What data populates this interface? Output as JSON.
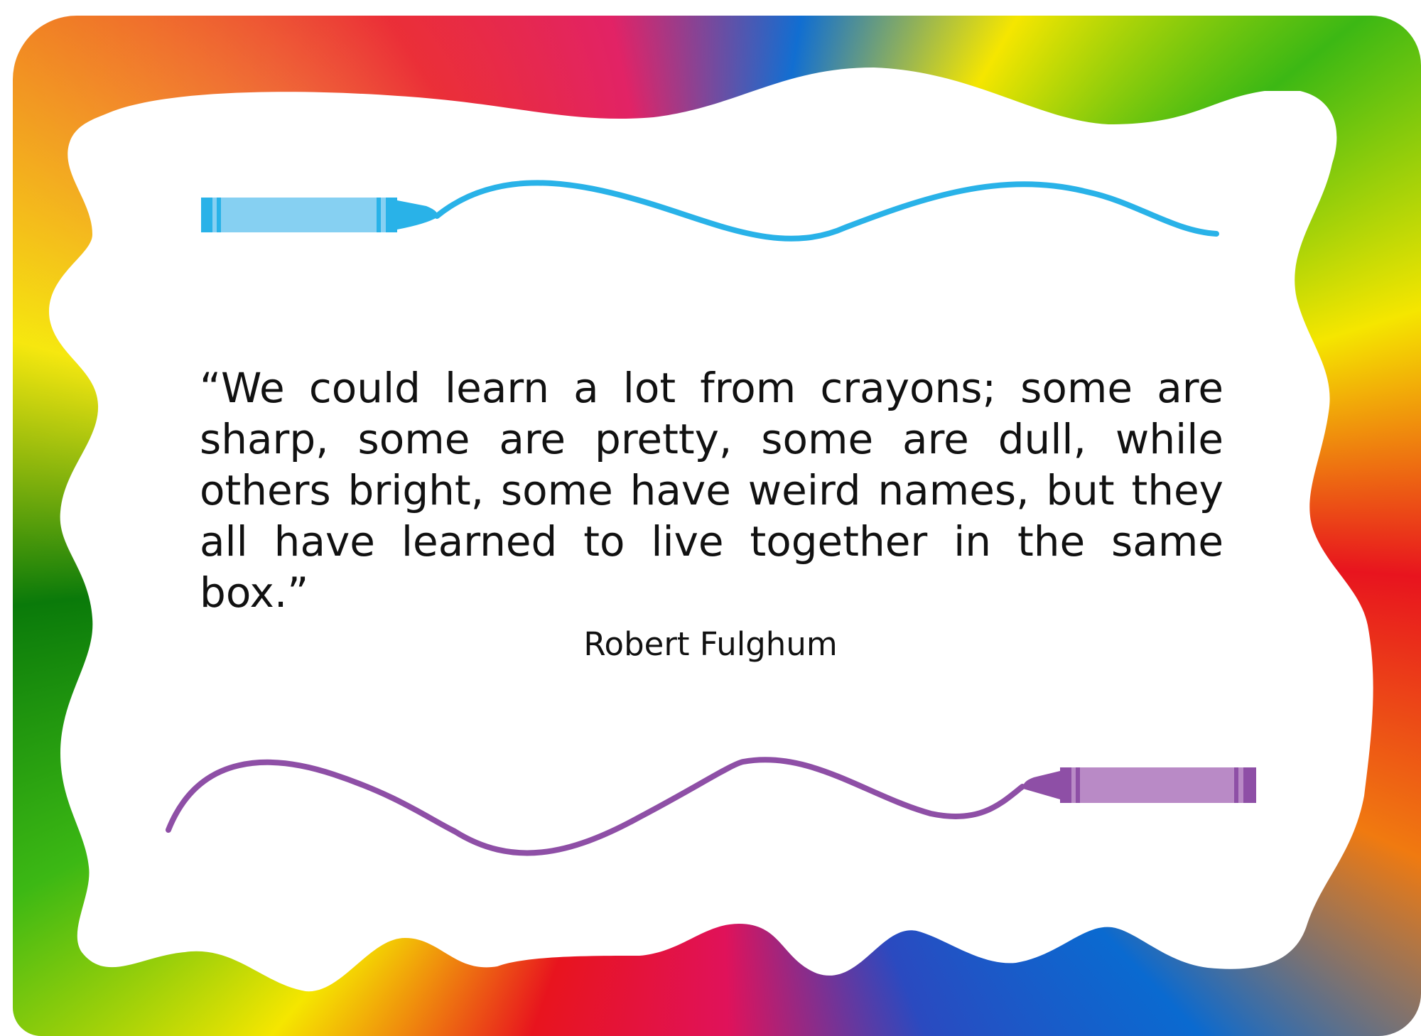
{
  "card": {
    "quote": "“We could learn a lot from crayons; some are sharp, some are pretty, some are dull, while others bright, some have weird names, but they all have learned to live together in the same box.”",
    "author": "Robert Fulghum"
  },
  "decorations": {
    "top_crayon": {
      "icon": "crayon-icon",
      "color": "#29b2e8",
      "body_color": "#86d0f2"
    },
    "bottom_crayon": {
      "icon": "crayon-icon",
      "color": "#8e4fa6",
      "body_color": "#b98ac6"
    },
    "frame": {
      "style": "rainbow watercolor border",
      "colors": [
        "#e8141e",
        "#f5e600",
        "#3cb814",
        "#0a6ad0",
        "#e0125a",
        "#f07a10"
      ]
    }
  }
}
